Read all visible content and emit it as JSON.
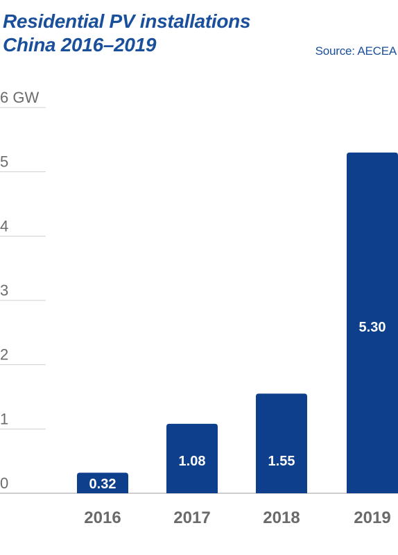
{
  "header": {
    "title_line1": "Residential PV installations",
    "title_line2": "China 2016–2019",
    "source": "Source: AECEA"
  },
  "colors": {
    "bar": "#0e3f8c",
    "title": "#1a4f9c",
    "gridline": "#cfcfcf",
    "axis_text": "#6b6b6b"
  },
  "chart_data": {
    "type": "bar",
    "title": "Residential PV installations China 2016–2019",
    "categories": [
      "2016",
      "2017",
      "2018",
      "2019"
    ],
    "values": [
      0.32,
      1.08,
      1.55,
      5.3
    ],
    "value_labels": [
      "0.32",
      "1.08",
      "1.55",
      "5.30"
    ],
    "unit": "GW",
    "ylim": [
      0,
      6
    ],
    "y_ticks": [
      0,
      1,
      2,
      3,
      4,
      5,
      6
    ],
    "y_tick_labels": [
      "0",
      "1",
      "2",
      "3",
      "4",
      "5",
      "6 GW"
    ],
    "xlabel": "",
    "ylabel": "",
    "grid": true,
    "legend": "none"
  }
}
